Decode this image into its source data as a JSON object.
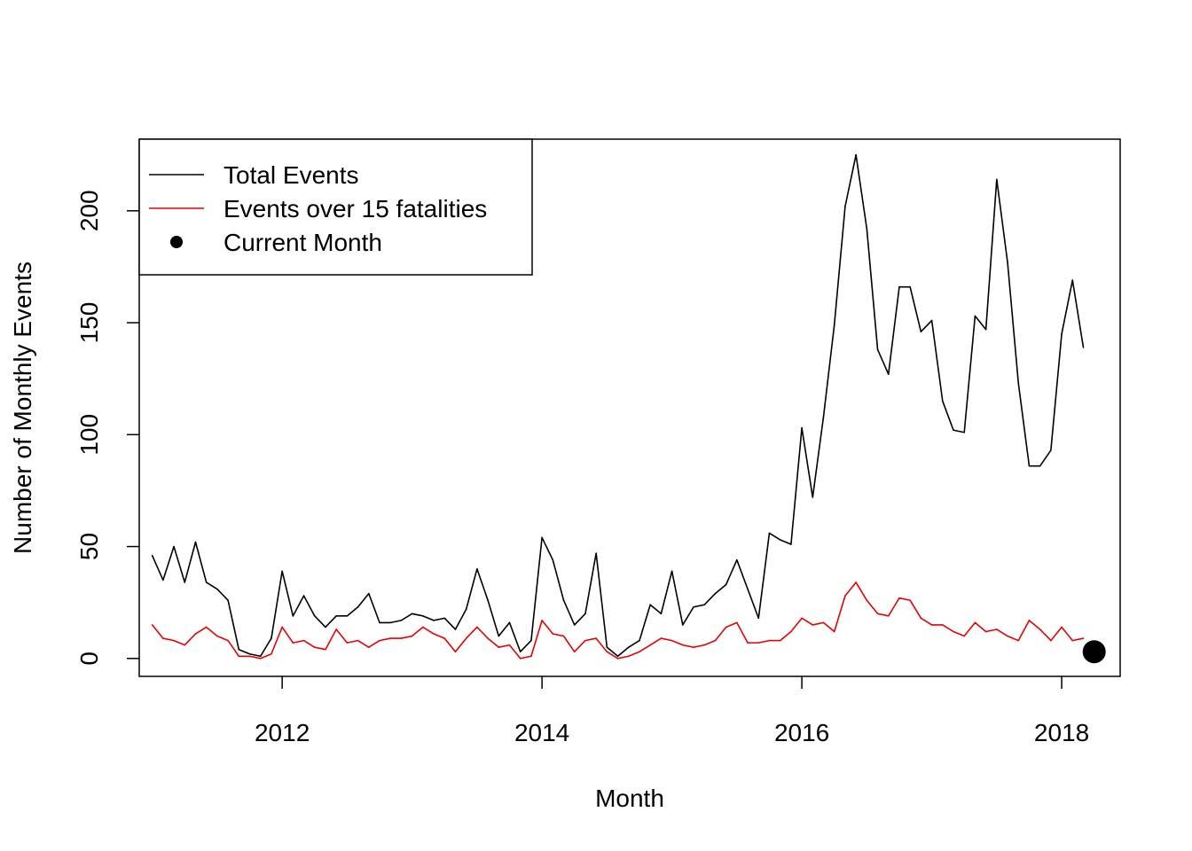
{
  "chart_data": {
    "type": "line",
    "title": "",
    "xlabel": "Month",
    "ylabel": "Number of Monthly Events",
    "xlim": [
      2010.9,
      2018.45
    ],
    "ylim": [
      -8,
      232
    ],
    "x_ticks": [
      2012,
      2014,
      2016,
      2018
    ],
    "x_tick_labels": [
      "2012",
      "2014",
      "2016",
      "2018"
    ],
    "y_ticks": [
      0,
      50,
      100,
      150,
      200
    ],
    "y_tick_labels": [
      "0",
      "50",
      "100",
      "150",
      "200"
    ],
    "grid": false,
    "legend": {
      "placement": "top-left",
      "entries": [
        "Total Events",
        "Events over 15 fatalities",
        "Current Month"
      ]
    },
    "x_start": 2011.0,
    "x_step": 0.083333,
    "series": [
      {
        "name": "Total Events",
        "color": "#000000",
        "values": [
          46,
          35,
          50,
          34,
          52,
          34,
          31,
          26,
          4,
          2,
          1,
          9,
          39,
          19,
          28,
          19,
          14,
          19,
          19,
          23,
          29,
          16,
          16,
          17,
          20,
          19,
          17,
          18,
          13,
          22,
          40,
          26,
          10,
          16,
          3,
          8,
          54,
          44,
          26,
          15,
          20,
          47,
          5,
          1,
          5,
          8,
          24,
          20,
          39,
          15,
          23,
          24,
          29,
          33,
          44,
          31,
          18,
          56,
          53,
          51,
          103,
          72,
          108,
          149,
          202,
          225,
          192,
          138,
          127,
          166,
          166,
          146,
          151,
          115,
          102,
          101,
          153,
          147,
          214,
          177,
          123,
          86,
          86,
          93,
          145,
          169,
          139
        ]
      },
      {
        "name": "Events over 15 fatalities",
        "color": "#ee0000",
        "values": [
          15,
          9,
          8,
          6,
          11,
          14,
          10,
          8,
          1,
          1,
          0,
          2,
          14,
          7,
          8,
          5,
          4,
          13,
          7,
          8,
          5,
          8,
          9,
          9,
          10,
          14,
          11,
          9,
          3,
          9,
          14,
          9,
          5,
          6,
          0,
          1,
          17,
          11,
          10,
          3,
          8,
          9,
          3,
          0,
          1,
          3,
          6,
          9,
          8,
          6,
          5,
          6,
          8,
          14,
          16,
          7,
          7,
          8,
          8,
          12,
          18,
          15,
          16,
          12,
          28,
          34,
          26,
          20,
          19,
          27,
          26,
          18,
          15,
          15,
          12,
          10,
          16,
          12,
          13,
          10,
          8,
          17,
          13,
          8,
          14,
          8,
          9
        ]
      }
    ],
    "current_month": {
      "label": "Current Month",
      "x": 2018.25,
      "y": 3,
      "color": "#000000"
    }
  }
}
